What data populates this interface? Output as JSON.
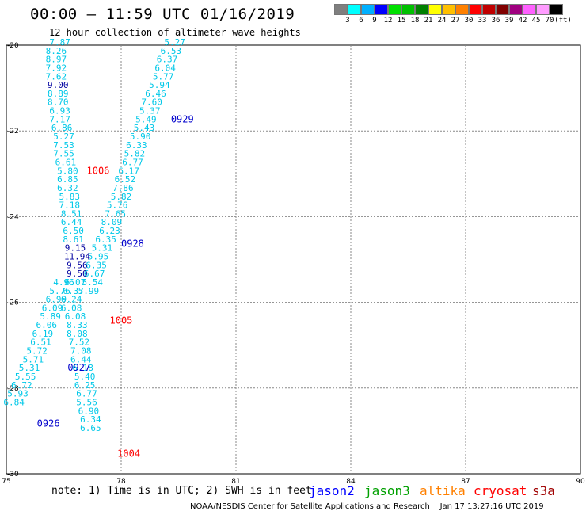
{
  "header": {
    "title": "00:00 – 11:59 UTC 01/16/2019",
    "subtitle": "12 hour collection of altimeter wave heights"
  },
  "scale": {
    "colors": [
      "#7f7f7f",
      "#00ffff",
      "#00b0ff",
      "#0000ff",
      "#00e000",
      "#00c000",
      "#008000",
      "#ffff00",
      "#ffc000",
      "#ff8000",
      "#ff0000",
      "#c00000",
      "#800000",
      "#a00080",
      "#ff60ff",
      "#ff9cff",
      "#000000"
    ],
    "labels": [
      "3",
      "6",
      "9",
      "12",
      "15",
      "18",
      "21",
      "24",
      "27",
      "30",
      "33",
      "36",
      "39",
      "42",
      "45",
      "70",
      "(ft)"
    ]
  },
  "map": {
    "lon_range": [
      75,
      90
    ],
    "lat_range": [
      -20,
      -30
    ],
    "lon_labels": [
      "75",
      "78",
      "81",
      "84",
      "87",
      "90"
    ],
    "lat_labels": [
      "-20",
      "-22",
      "-24",
      "-26",
      "-28",
      "-30"
    ]
  },
  "tracks": [
    {
      "sat": "jason2",
      "label": "0929",
      "label_pos": [
        79.3,
        -21.8
      ],
      "points": [
        [
          79.4,
          -20.0,
          "5.27"
        ],
        [
          79.3,
          -20.2,
          "6.53"
        ],
        [
          79.2,
          -20.4,
          "6.37"
        ],
        [
          79.15,
          -20.6,
          "6.04"
        ],
        [
          79.1,
          -20.8,
          "5.77"
        ],
        [
          79.0,
          -21.0,
          "5.94"
        ],
        [
          78.9,
          -21.2,
          "6.46"
        ],
        [
          78.8,
          -21.4,
          "7.60"
        ],
        [
          78.75,
          -21.6,
          "5.37"
        ],
        [
          78.65,
          -21.8,
          "5.49"
        ],
        [
          78.6,
          -22.0,
          "5.43"
        ],
        [
          78.5,
          -22.2,
          "5.90"
        ],
        [
          78.4,
          -22.4,
          "6.33"
        ],
        [
          78.35,
          -22.6,
          "5.82"
        ],
        [
          78.3,
          -22.8,
          "6.77"
        ],
        [
          78.2,
          -23.0,
          "6.17"
        ],
        [
          78.1,
          -23.2,
          "6.52"
        ],
        [
          78.05,
          -23.4,
          "7.86"
        ],
        [
          78.0,
          -23.6,
          "5.82"
        ],
        [
          77.9,
          -23.8,
          "5.76"
        ],
        [
          77.85,
          -24.0,
          "7.65"
        ],
        [
          77.75,
          -24.2,
          "8.09"
        ],
        [
          77.7,
          -24.4,
          "6.23"
        ],
        [
          77.6,
          -24.6,
          "6.35"
        ],
        [
          77.5,
          -24.8,
          "5.31"
        ],
        [
          77.4,
          -25.0,
          "5.95"
        ],
        [
          77.35,
          -25.2,
          "6.35"
        ],
        [
          77.3,
          -25.4,
          "6.67"
        ],
        [
          77.25,
          -25.6,
          "5.54"
        ],
        [
          77.15,
          -25.8,
          "5.99"
        ]
      ]
    },
    {
      "sat": "jason2",
      "label": "0928",
      "label_pos": [
        78.0,
        -24.7
      ],
      "points": []
    },
    {
      "sat": "jason2",
      "label": "0927",
      "label_pos": [
        76.6,
        -27.6
      ],
      "points": [
        [
          76.4,
          -20.0,
          "7.87"
        ],
        [
          76.3,
          -20.2,
          "8.26"
        ],
        [
          76.3,
          -20.4,
          "8.97"
        ],
        [
          76.3,
          -20.6,
          "7.92"
        ],
        [
          76.3,
          -20.8,
          "7.62"
        ],
        [
          76.35,
          -21.0,
          "9.00"
        ],
        [
          76.35,
          -21.2,
          "8.89"
        ],
        [
          76.35,
          -21.4,
          "8.70"
        ],
        [
          76.4,
          -21.6,
          "6.93"
        ],
        [
          76.4,
          -21.8,
          "7.17"
        ],
        [
          76.45,
          -22.0,
          "6.86"
        ],
        [
          76.5,
          -22.2,
          "5.27"
        ],
        [
          76.5,
          -22.4,
          "7.53"
        ],
        [
          76.5,
          -22.6,
          "7.55"
        ],
        [
          76.55,
          -22.8,
          "6.61"
        ],
        [
          76.6,
          -23.0,
          "5.80"
        ],
        [
          76.6,
          -23.2,
          "6.85"
        ],
        [
          76.6,
          -23.4,
          "6.32"
        ],
        [
          76.65,
          -23.6,
          "5.83"
        ],
        [
          76.65,
          -23.8,
          "7.18"
        ],
        [
          76.7,
          -24.0,
          "8.51"
        ],
        [
          76.7,
          -24.2,
          "6.44"
        ],
        [
          76.75,
          -24.4,
          "6.50"
        ],
        [
          76.75,
          -24.6,
          "8.61"
        ],
        [
          76.8,
          -24.8,
          "9.15"
        ],
        [
          76.85,
          -25.0,
          "11.94"
        ],
        [
          76.85,
          -25.2,
          "9.56"
        ],
        [
          76.85,
          -25.4,
          "9.50"
        ],
        [
          76.8,
          -25.6,
          "6.07"
        ],
        [
          76.75,
          -25.8,
          "6.37"
        ],
        [
          76.7,
          -26.0,
          "6.24"
        ],
        [
          76.7,
          -26.2,
          "6.08"
        ],
        [
          76.8,
          -26.4,
          "6.08"
        ],
        [
          76.85,
          -26.6,
          "8.33"
        ],
        [
          76.85,
          -26.8,
          "8.08"
        ],
        [
          76.9,
          -27.0,
          "7.52"
        ],
        [
          76.95,
          -27.2,
          "7.08"
        ],
        [
          76.95,
          -27.4,
          "6.44"
        ],
        [
          77.0,
          -27.6,
          "6.18"
        ],
        [
          77.05,
          -27.8,
          "5.40"
        ],
        [
          77.05,
          -28.0,
          "6.25"
        ],
        [
          77.1,
          -28.2,
          "6.77"
        ],
        [
          77.1,
          -28.4,
          "5.56"
        ],
        [
          77.15,
          -28.6,
          "6.90"
        ],
        [
          77.2,
          -28.8,
          "6.34"
        ],
        [
          77.2,
          -29.0,
          "6.65"
        ]
      ]
    },
    {
      "sat": "jason2",
      "label": "0926",
      "label_pos": [
        75.8,
        -28.9
      ],
      "points": [
        [
          76.5,
          -25.6,
          "4.96"
        ],
        [
          76.4,
          -25.8,
          "5.76"
        ],
        [
          76.3,
          -26.0,
          "6.99"
        ],
        [
          76.2,
          -26.2,
          "6.09"
        ],
        [
          76.15,
          -26.4,
          "5.89"
        ],
        [
          76.05,
          -26.6,
          "6.06"
        ],
        [
          75.95,
          -26.8,
          "6.19"
        ],
        [
          75.9,
          -27.0,
          "6.51"
        ],
        [
          75.8,
          -27.2,
          "5.72"
        ],
        [
          75.7,
          -27.4,
          "5.71"
        ],
        [
          75.6,
          -27.6,
          "5.31"
        ],
        [
          75.5,
          -27.8,
          "5.55"
        ],
        [
          75.4,
          -28.0,
          "6.72"
        ],
        [
          75.3,
          -28.2,
          "5.93"
        ],
        [
          75.2,
          -28.4,
          "6.84"
        ]
      ]
    },
    {
      "sat": "cryosat",
      "label": "1006",
      "label_pos": [
        77.1,
        -23.0
      ],
      "points": []
    },
    {
      "sat": "cryosat",
      "label": "1005",
      "label_pos": [
        77.7,
        -26.5
      ],
      "points": []
    },
    {
      "sat": "cryosat",
      "label": "1004",
      "label_pos": [
        77.9,
        -29.6
      ],
      "points": []
    }
  ],
  "footer": {
    "note": "note: 1) Time is in UTC; 2) SWH is in feet",
    "credit": "NOAA/NESDIS Center for Satellite Applications and Research    Jan 17 13:27:16 UTC 2019",
    "legend": [
      {
        "name": "jason2",
        "color": "#0000ff"
      },
      {
        "name": "jason3",
        "color": "#00a000"
      },
      {
        "name": "altika",
        "color": "#ff8000"
      },
      {
        "name": "cryosat",
        "color": "#ff0000"
      },
      {
        "name": "s3a",
        "color": "#a00000"
      }
    ]
  },
  "sat_colors": {
    "jason2": "#0000cc",
    "cryosat": "#ff0000",
    "value": "#00c8e8",
    "value_dark": "#0000a0"
  }
}
